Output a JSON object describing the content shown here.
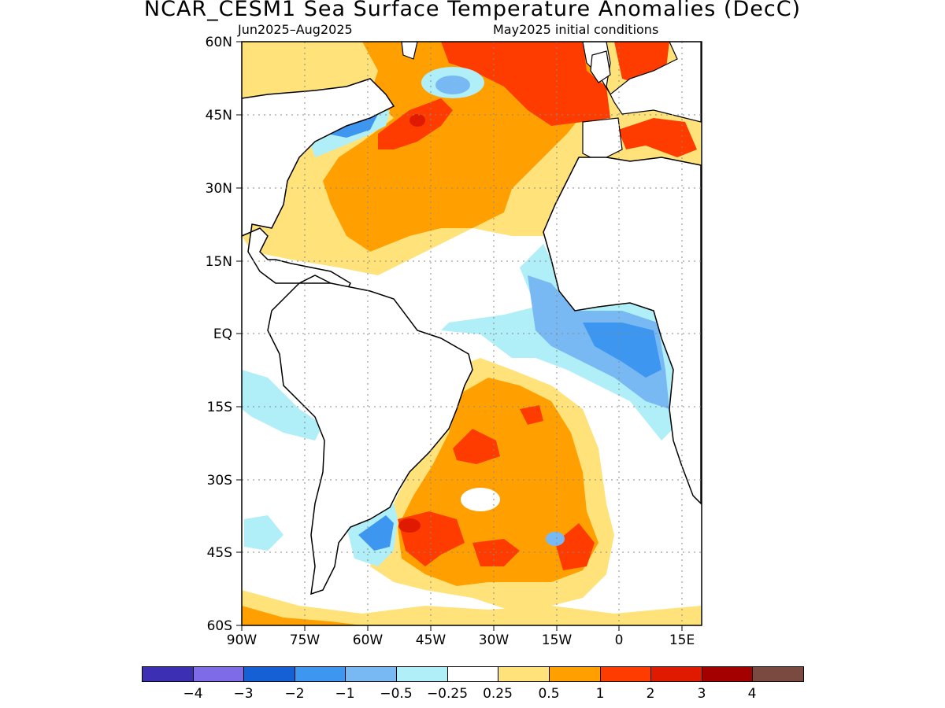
{
  "title": "NCAR_CESM1 Sea Surface Temperature Anomalies (DecC)",
  "subtitle_left": "Jun2025–Aug2025",
  "subtitle_right": "May2025 initial conditions",
  "map": {
    "lat_range": [
      -60,
      60
    ],
    "lon_range": [
      -90,
      20
    ],
    "lat_ticks": [
      "60N",
      "45N",
      "30N",
      "15N",
      "EQ",
      "15S",
      "30S",
      "45S",
      "60S"
    ],
    "lon_ticks": [
      "90W",
      "75W",
      "60W",
      "45W",
      "30W",
      "15W",
      "0",
      "15E"
    ],
    "grid": "dotted",
    "land_color": "#ffffff",
    "coastline_color": "#000000"
  },
  "colorbar": {
    "colors": [
      "#3c2fb4",
      "#7d6be8",
      "#1560d4",
      "#3d96f0",
      "#78b9f4",
      "#b0eef8",
      "#ffffff",
      "#ffe27a",
      "#ffa000",
      "#ff3c00",
      "#e01a00",
      "#a50000",
      "#7a4a40"
    ],
    "labels": [
      "−4",
      "−3",
      "−2",
      "−1",
      "−0.5",
      "−0.25",
      "0.25",
      "0.5",
      "1",
      "2",
      "3",
      "4"
    ]
  }
}
